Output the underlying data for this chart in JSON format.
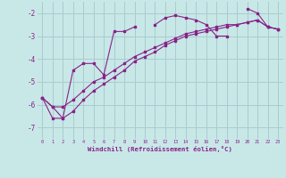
{
  "xlabel": "Windchill (Refroidissement éolien,°C)",
  "bg_color": "#c8e8e8",
  "line_color": "#882288",
  "grid_color": "#aacccc",
  "x_values": [
    0,
    1,
    2,
    3,
    4,
    5,
    6,
    7,
    8,
    9,
    10,
    11,
    12,
    13,
    14,
    15,
    16,
    17,
    18,
    19,
    20,
    21,
    22,
    23
  ],
  "series1": [
    -5.7,
    -6.1,
    -6.6,
    -4.5,
    -4.2,
    -4.2,
    -4.7,
    -2.8,
    -2.8,
    -2.6,
    null,
    -2.5,
    -2.2,
    -2.1,
    -2.2,
    -2.3,
    -2.5,
    -3.0,
    -3.0,
    null,
    -1.8,
    -2.0,
    -2.6,
    -2.7
  ],
  "series2": [
    -5.7,
    -6.1,
    -6.1,
    -5.8,
    -5.4,
    -5.0,
    -4.8,
    -4.5,
    -4.2,
    -3.9,
    -3.7,
    -3.5,
    -3.3,
    -3.1,
    -2.9,
    -2.8,
    -2.7,
    -2.6,
    -2.5,
    -2.5,
    -2.4,
    -2.3,
    -2.6,
    -2.7
  ],
  "series3": [
    -5.7,
    -6.6,
    -6.6,
    -6.3,
    -5.8,
    -5.4,
    -5.1,
    -4.8,
    -4.5,
    -4.1,
    -3.9,
    -3.7,
    -3.4,
    -3.2,
    -3.0,
    -2.9,
    -2.8,
    -2.7,
    -2.6,
    -2.5,
    -2.4,
    -2.3,
    -2.6,
    -2.7
  ],
  "ylim": [
    -7.5,
    -1.5
  ],
  "yticks": [
    -7,
    -6,
    -5,
    -4,
    -3,
    -2
  ],
  "xlim": [
    -0.5,
    23.5
  ],
  "xticks": [
    0,
    1,
    2,
    3,
    4,
    5,
    6,
    7,
    8,
    9,
    10,
    11,
    12,
    13,
    14,
    15,
    16,
    17,
    18,
    19,
    20,
    21,
    22,
    23
  ]
}
